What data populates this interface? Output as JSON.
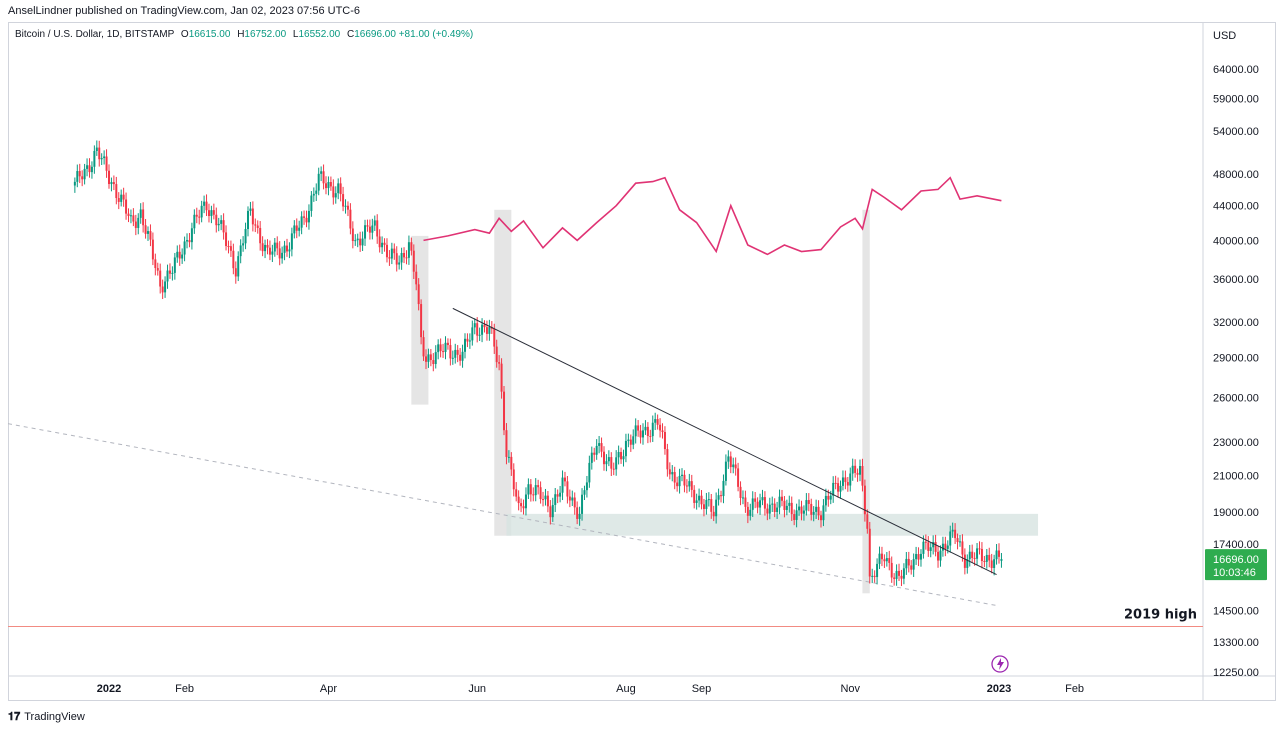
{
  "publisher_line": "AnselLindner published on TradingView.com, Jan 02, 2023 07:56 UTC-6",
  "legend": {
    "symbol": "Bitcoin / U.S. Dollar, 1D, BITSTAMP",
    "open_label": "O",
    "open": "16615.00",
    "high_label": "H",
    "high": "16752.00",
    "low_label": "L",
    "low": "16552.00",
    "close_label": "C",
    "close": "16696.00",
    "change": "+81.00 (+0.49%)"
  },
  "brand": "TradingView",
  "colors": {
    "up": "#089981",
    "down": "#f23645",
    "overlay": "#e03374",
    "shade": "#e0e0e0",
    "zone": "#d7e4e1",
    "high_line": "#f28b82",
    "trendline": "#2a2e39",
    "price_tag": "#2eac4f"
  },
  "chart_data": {
    "type": "candlestick",
    "scale": "log",
    "currency": "USD",
    "y_ticks": [
      "64000.00",
      "59000.00",
      "54000.00",
      "48000.00",
      "44000.00",
      "40000.00",
      "36000.00",
      "32000.00",
      "29000.00",
      "26000.00",
      "23000.00",
      "21000.00",
      "19000.00",
      "17400.00",
      "14500.00",
      "13300.00",
      "12250.00"
    ],
    "y_tick_values": [
      64000,
      59000,
      54000,
      48000,
      44000,
      40000,
      36000,
      32000,
      29000,
      26000,
      23000,
      21000,
      19000,
      17400,
      14500,
      13300,
      12250
    ],
    "x_ticks": [
      "2022",
      "Feb",
      "Apr",
      "Jun",
      "Aug",
      "Sep",
      "Nov",
      "2023",
      "Feb"
    ],
    "x_tick_dates": [
      "2022-01-01",
      "2022-02-01",
      "2022-04-01",
      "2022-06-01",
      "2022-08-01",
      "2022-09-01",
      "2022-11-01",
      "2023-01-01",
      "2023-02-01"
    ],
    "price_tag": "16696.00",
    "countdown": "10:03:46",
    "annotation": "2019 high",
    "annotation_value": 13880,
    "path_points": [
      [
        "2021-12-18",
        46500
      ],
      [
        "2021-12-27",
        51000
      ],
      [
        "2022-01-03",
        46500
      ],
      [
        "2022-01-10",
        42000
      ],
      [
        "2022-01-14",
        43200
      ],
      [
        "2022-01-22",
        35500
      ],
      [
        "2022-01-27",
        36800
      ],
      [
        "2022-02-04",
        41500
      ],
      [
        "2022-02-10",
        44200
      ],
      [
        "2022-02-14",
        42500
      ],
      [
        "2022-02-22",
        37200
      ],
      [
        "2022-02-28",
        43200
      ],
      [
        "2022-03-07",
        38500
      ],
      [
        "2022-03-15",
        39300
      ],
      [
        "2022-03-22",
        42500
      ],
      [
        "2022-03-28",
        47200
      ],
      [
        "2022-04-05",
        46000
      ],
      [
        "2022-04-12",
        40000
      ],
      [
        "2022-04-20",
        41500
      ],
      [
        "2022-04-26",
        38200
      ],
      [
        "2022-04-30",
        37700
      ],
      [
        "2022-05-04",
        39800
      ],
      [
        "2022-05-07",
        35500
      ],
      [
        "2022-05-09",
        30200
      ],
      [
        "2022-05-11",
        29000
      ],
      [
        "2022-05-20",
        29700
      ],
      [
        "2022-05-26",
        29200
      ],
      [
        "2022-05-31",
        31700
      ],
      [
        "2022-06-06",
        31200
      ],
      [
        "2022-06-10",
        28500
      ],
      [
        "2022-06-13",
        22500
      ],
      [
        "2022-06-18",
        19000
      ],
      [
        "2022-06-22",
        20400
      ],
      [
        "2022-07-01",
        19300
      ],
      [
        "2022-07-06",
        20400
      ],
      [
        "2022-07-13",
        19000
      ],
      [
        "2022-07-20",
        23200
      ],
      [
        "2022-07-26",
        21200
      ],
      [
        "2022-08-01",
        23000
      ],
      [
        "2022-08-14",
        24300
      ],
      [
        "2022-08-19",
        21200
      ],
      [
        "2022-08-29",
        20000
      ],
      [
        "2022-09-06",
        18900
      ],
      [
        "2022-09-12",
        22100
      ],
      [
        "2022-09-19",
        19300
      ],
      [
        "2022-09-30",
        19400
      ],
      [
        "2022-10-10",
        19100
      ],
      [
        "2022-10-20",
        19100
      ],
      [
        "2022-10-28",
        20700
      ],
      [
        "2022-11-05",
        21200
      ],
      [
        "2022-11-08",
        18500
      ],
      [
        "2022-11-09",
        15800
      ],
      [
        "2022-11-15",
        16800
      ],
      [
        "2022-11-21",
        15800
      ],
      [
        "2022-11-30",
        17200
      ],
      [
        "2022-12-07",
        17100
      ],
      [
        "2022-12-14",
        17800
      ],
      [
        "2022-12-18",
        16800
      ],
      [
        "2022-12-25",
        16800
      ],
      [
        "2023-01-02",
        16696
      ]
    ],
    "candles_ohlc_last": {
      "open": 16615,
      "high": 16752,
      "low": 16552,
      "close": 16696
    },
    "overlay_series": {
      "color": "#e03374",
      "points": [
        [
          "2022-05-10",
          40000
        ],
        [
          "2022-05-20",
          40500
        ],
        [
          "2022-05-31",
          41200
        ],
        [
          "2022-06-06",
          40800
        ],
        [
          "2022-06-10",
          42500
        ],
        [
          "2022-06-15",
          41000
        ],
        [
          "2022-06-20",
          42200
        ],
        [
          "2022-06-28",
          39200
        ],
        [
          "2022-07-06",
          41400
        ],
        [
          "2022-07-12",
          40000
        ],
        [
          "2022-07-20",
          42000
        ],
        [
          "2022-07-28",
          44000
        ],
        [
          "2022-08-05",
          46800
        ],
        [
          "2022-08-12",
          47000
        ],
        [
          "2022-08-17",
          47500
        ],
        [
          "2022-08-23",
          43500
        ],
        [
          "2022-08-30",
          42000
        ],
        [
          "2022-09-07",
          38800
        ],
        [
          "2022-09-13",
          44000
        ],
        [
          "2022-09-20",
          39500
        ],
        [
          "2022-09-28",
          38500
        ],
        [
          "2022-10-05",
          39500
        ],
        [
          "2022-10-12",
          38800
        ],
        [
          "2022-10-20",
          39000
        ],
        [
          "2022-10-28",
          41500
        ],
        [
          "2022-11-03",
          42500
        ],
        [
          "2022-11-06",
          41300
        ],
        [
          "2022-11-10",
          46000
        ],
        [
          "2022-11-15",
          45000
        ],
        [
          "2022-11-22",
          43500
        ],
        [
          "2022-11-30",
          45800
        ],
        [
          "2022-12-07",
          46000
        ],
        [
          "2022-12-12",
          47500
        ],
        [
          "2022-12-16",
          44800
        ],
        [
          "2022-12-23",
          45200
        ],
        [
          "2023-01-02",
          44600
        ]
      ]
    },
    "shaded_regions": [
      {
        "start": "2022-05-05",
        "end": "2022-05-12",
        "low": 25500,
        "high": 40500
      },
      {
        "start": "2022-06-08",
        "end": "2022-06-15",
        "low": 17800,
        "high": 43500
      },
      {
        "start": "2022-11-06",
        "end": "2022-11-09",
        "low": 15200,
        "high": 43500
      }
    ],
    "support_zone": {
      "start": "2022-06-13",
      "end": "2023-01-17",
      "low": 17800,
      "high": 18900
    },
    "trendline": {
      "start": [
        "2022-05-22",
        33200
      ],
      "end": [
        "2022-12-31",
        16000
      ]
    },
    "dashed_line": {
      "start": [
        "2021-12-15",
        24200
      ],
      "end": [
        "2022-12-31",
        14700
      ]
    },
    "horizontal_line": {
      "value": 13880
    }
  }
}
